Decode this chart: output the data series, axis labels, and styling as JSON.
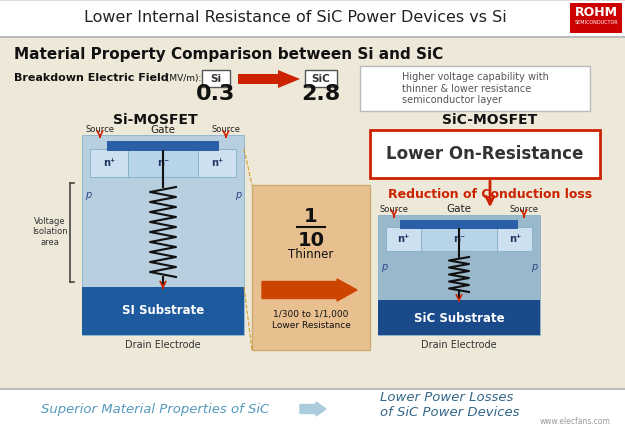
{
  "title": "Lower Internal Resistance of SiC Power Devices vs Si",
  "bg_color": "#ede8d8",
  "header_bg": "#ffffff",
  "main_title": "Material Property Comparison between Si and SiC",
  "breakdown_label": "Breakdown Electric Field",
  "breakdown_unit": " (MV/m):",
  "si_value": "0.3",
  "sic_value": "2.8",
  "si_label": "Si",
  "sic_label": "SiC",
  "right_note": "Higher voltage capability with\nthinner & lower resistance\nsemiconductor layer",
  "si_mosfet_label": "Si-MOSFET",
  "sic_mosfet_label": "SiC-MOSFET",
  "lower_on_resistance": "Lower On-Resistance",
  "reduction_text": "Reduction of Conduction loss",
  "lower_resistance_text": "1/300 to 1/1,000\nLower Resistance",
  "si_substrate": "SI Substrate",
  "sic_substrate": "SiC Substrate",
  "drain_electrode_left": "Drain Electrode",
  "drain_electrode_right": "Drain Electrode",
  "voltage_isolation": "Voltage\nIsolation\narea",
  "gate_label": "Gate",
  "source_left": "Source",
  "source_right": "Source",
  "bottom_left": "Superior Material Properties of SiC",
  "bottom_right": "Lower Power Losses\nof SiC Power Devices",
  "rohm_text": "ROHM",
  "rohm_sub": "SEMICONDUCTOR",
  "rohm_bg": "#cc0000",
  "color_si_body": "#b8cfe0",
  "color_si_substrate": "#1e5a9e",
  "color_sic_body": "#9ab8cc",
  "color_sic_substrate": "#1a4a8a",
  "color_gate_bar": "#2a5fa8",
  "color_n_light": "#cce0f0",
  "color_n_mid": "#b8d4e8",
  "arrow_color": "#cc2200",
  "resistor_color": "#111111",
  "orange_bg": "#e8c090",
  "watermark": "www.elecfans.com",
  "bottom_arrow_color": "#88bbcc",
  "separator_color": "#bbbbbb"
}
